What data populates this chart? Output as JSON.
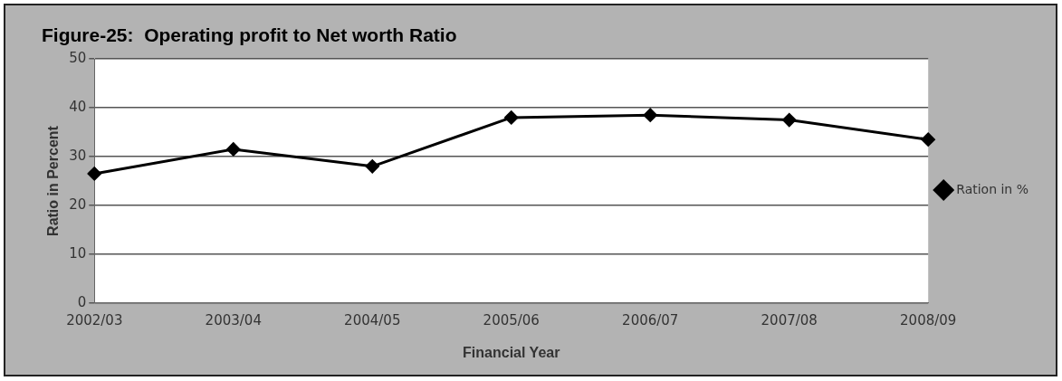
{
  "chart_data": {
    "type": "line",
    "title": "Figure-25:  Operating profit to Net worth Ratio",
    "xlabel": "Financial Year",
    "ylabel": "Ratio in Percent",
    "categories": [
      "2002/03",
      "2003/04",
      "2004/05",
      "2005/06",
      "2006/07",
      "2007/08",
      "2008/09"
    ],
    "series": [
      {
        "name": "Ration in %",
        "color": "#000000",
        "values": [
          26.5,
          31.5,
          28,
          38,
          38.5,
          37.5,
          33.5
        ]
      }
    ],
    "ylim": [
      0,
      50
    ],
    "yticks": [
      0,
      10,
      20,
      30,
      40,
      50
    ],
    "grid": "y",
    "legend": "right",
    "marker": "diamond",
    "line_style": "solid"
  }
}
